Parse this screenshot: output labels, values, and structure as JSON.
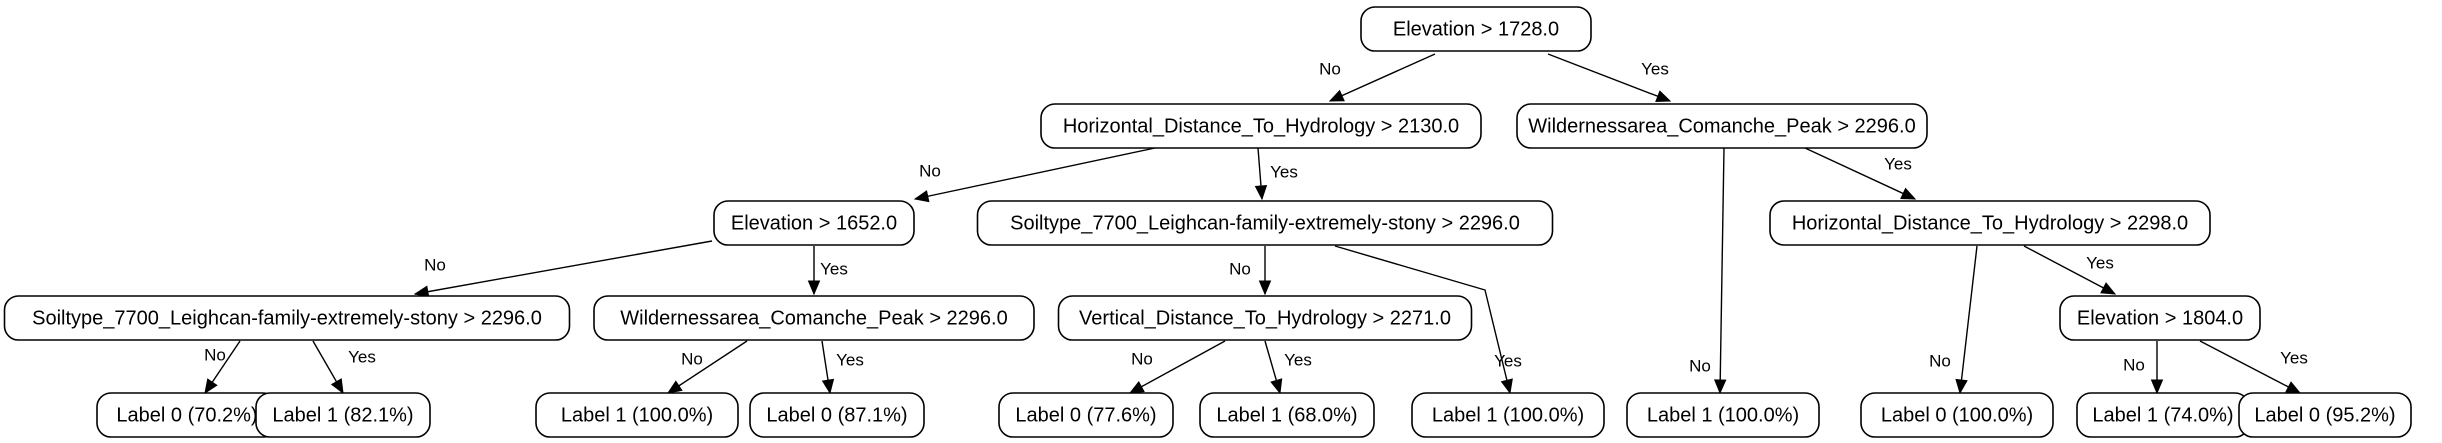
{
  "nodes": {
    "n0": "Elevation > 1728.0",
    "n1": "Horizontal_Distance_To_Hydrology > 2130.0",
    "n2": "Wildernessarea_Comanche_Peak > 2296.0",
    "n3": "Elevation > 1652.0",
    "n4": "Soiltype_7700_Leighcan-family-extremely-stony > 2296.0",
    "n5": "Horizontal_Distance_To_Hydrology > 2298.0",
    "n6": "Soiltype_7700_Leighcan-family-extremely-stony > 2296.0",
    "n7": "Wildernessarea_Comanche_Peak > 2296.0",
    "n8": "Vertical_Distance_To_Hydrology > 2271.0",
    "n9": "Elevation > 1804.0",
    "l1": "Label 0 (70.2%)",
    "l2": "Label 1 (82.1%)",
    "l3": "Label 1 (100.0%)",
    "l4": "Label 0 (87.1%)",
    "l5": "Label 0 (77.6%)",
    "l6": "Label 1 (68.0%)",
    "l7": "Label 1 (100.0%)",
    "l8": "Label 1 (100.0%)",
    "l9": "Label 0 (100.0%)",
    "l10": "Label 1 (74.0%)",
    "l11": "Label 0 (95.2%)"
  },
  "edges": [
    {
      "from": "n0",
      "to": "n1",
      "label": "No"
    },
    {
      "from": "n0",
      "to": "n2",
      "label": "Yes"
    },
    {
      "from": "n1",
      "to": "n3",
      "label": "No"
    },
    {
      "from": "n1",
      "to": "n4",
      "label": "Yes"
    },
    {
      "from": "n2",
      "to": "l8",
      "label": "No"
    },
    {
      "from": "n2",
      "to": "n5",
      "label": "Yes"
    },
    {
      "from": "n3",
      "to": "n6",
      "label": "No"
    },
    {
      "from": "n3",
      "to": "n7",
      "label": "Yes"
    },
    {
      "from": "n4",
      "to": "n8",
      "label": "No"
    },
    {
      "from": "n4",
      "to": "l7",
      "label": "Yes"
    },
    {
      "from": "n5",
      "to": "l9",
      "label": "No"
    },
    {
      "from": "n5",
      "to": "n9",
      "label": "Yes"
    },
    {
      "from": "n6",
      "to": "l1",
      "label": "No"
    },
    {
      "from": "n6",
      "to": "l2",
      "label": "Yes"
    },
    {
      "from": "n7",
      "to": "l3",
      "label": "No"
    },
    {
      "from": "n7",
      "to": "l4",
      "label": "Yes"
    },
    {
      "from": "n8",
      "to": "l5",
      "label": "No"
    },
    {
      "from": "n8",
      "to": "l6",
      "label": "Yes"
    },
    {
      "from": "n9",
      "to": "l10",
      "label": "No"
    },
    {
      "from": "n9",
      "to": "l11",
      "label": "Yes"
    }
  ]
}
